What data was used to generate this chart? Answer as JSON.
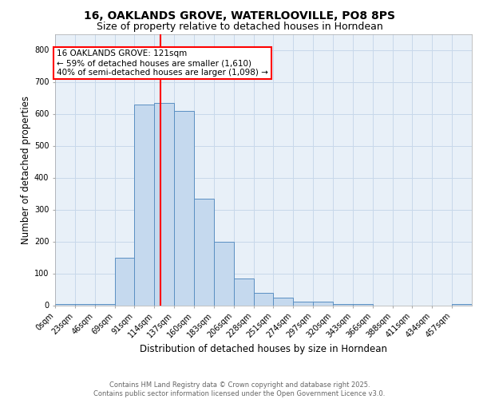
{
  "title_line1": "16, OAKLANDS GROVE, WATERLOOVILLE, PO8 8PS",
  "title_line2": "Size of property relative to detached houses in Horndean",
  "xlabel": "Distribution of detached houses by size in Horndean",
  "ylabel": "Number of detached properties",
  "bin_labels": [
    "0sqm",
    "23sqm",
    "46sqm",
    "69sqm",
    "91sqm",
    "114sqm",
    "137sqm",
    "160sqm",
    "183sqm",
    "206sqm",
    "228sqm",
    "251sqm",
    "274sqm",
    "297sqm",
    "320sqm",
    "343sqm",
    "366sqm",
    "388sqm",
    "411sqm",
    "434sqm",
    "457sqm"
  ],
  "bar_heights": [
    3,
    3,
    3,
    148,
    630,
    635,
    610,
    335,
    200,
    85,
    40,
    25,
    12,
    12,
    3,
    3,
    0,
    0,
    0,
    0,
    3
  ],
  "bar_color": "#c5d9ee",
  "bar_edge_color": "#5a8fc2",
  "bar_edge_width": 0.7,
  "red_line_x": 5,
  "bin_width": 1,
  "annotation_text": "16 OAKLANDS GROVE: 121sqm\n← 59% of detached houses are smaller (1,610)\n40% of semi-detached houses are larger (1,098) →",
  "annotation_box_color": "white",
  "annotation_box_edge_color": "red",
  "ylim": [
    0,
    850
  ],
  "yticks": [
    0,
    100,
    200,
    300,
    400,
    500,
    600,
    700,
    800
  ],
  "grid_color": "#c8d8ea",
  "background_color": "#e8f0f8",
  "footer_text": "Contains HM Land Registry data © Crown copyright and database right 2025.\nContains public sector information licensed under the Open Government Licence v3.0.",
  "title_fontsize": 10,
  "subtitle_fontsize": 9,
  "axis_label_fontsize": 8.5,
  "tick_fontsize": 7,
  "annotation_fontsize": 7.5,
  "footer_fontsize": 6
}
